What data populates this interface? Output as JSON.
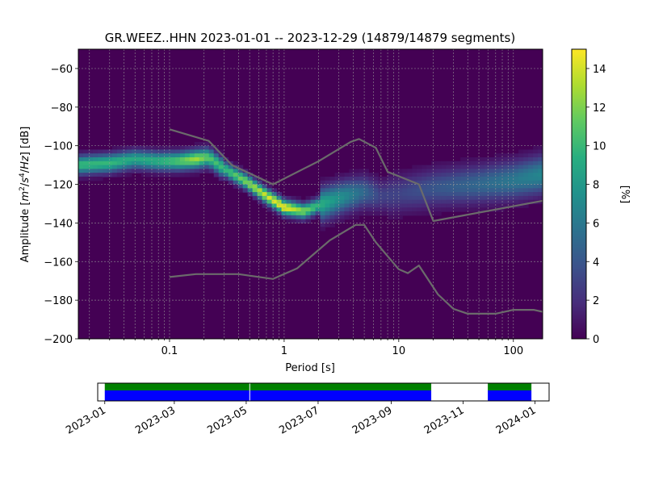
{
  "title": "GR.WEEZ..HHN   2023-01-01 -- 2023-12-29  (14879/14879 segments)",
  "chart_data": [
    {
      "type": "heatmap",
      "title": "GR.WEEZ..HHN   2023-01-01 -- 2023-12-29  (14879/14879 segments)",
      "xlabel": "Period [s]",
      "ylabel_parts": [
        "Amplitude [",
        "m",
        "2",
        "/",
        "s",
        "4",
        "/",
        "Hz",
        "] [dB]"
      ],
      "x_scale": "log",
      "xlim": [
        0.016,
        180
      ],
      "ylim": [
        -200,
        -50
      ],
      "x_ticks": [
        {
          "v": 0.1,
          "label": "0.1"
        },
        {
          "v": 1,
          "label": "1"
        },
        {
          "v": 10,
          "label": "10"
        },
        {
          "v": 100,
          "label": "100"
        }
      ],
      "y_ticks": [
        {
          "v": -60,
          "label": "−60"
        },
        {
          "v": -80,
          "label": "−80"
        },
        {
          "v": -100,
          "label": "−100"
        },
        {
          "v": -120,
          "label": "−120"
        },
        {
          "v": -140,
          "label": "−140"
        },
        {
          "v": -160,
          "label": "−160"
        },
        {
          "v": -180,
          "label": "−180"
        },
        {
          "v": -200,
          "label": "−200"
        }
      ],
      "grid": true,
      "colormap": "viridis",
      "colorbar": {
        "label": "[%]",
        "range": [
          0,
          15
        ],
        "ticks": [
          {
            "v": 0,
            "label": "0"
          },
          {
            "v": 2,
            "label": "2"
          },
          {
            "v": 4,
            "label": "4"
          },
          {
            "v": 6,
            "label": "6"
          },
          {
            "v": 8,
            "label": "8"
          },
          {
            "v": 10,
            "label": "10"
          },
          {
            "v": 12,
            "label": "12"
          },
          {
            "v": 14,
            "label": "14"
          }
        ]
      },
      "mode_curve": [
        {
          "x": 0.016,
          "y": -110,
          "peak": 10
        },
        {
          "x": 0.03,
          "y": -109,
          "peak": 10
        },
        {
          "x": 0.05,
          "y": -107,
          "peak": 9
        },
        {
          "x": 0.08,
          "y": -108,
          "peak": 9.5
        },
        {
          "x": 0.12,
          "y": -108,
          "peak": 11
        },
        {
          "x": 0.17,
          "y": -107,
          "peak": 13
        },
        {
          "x": 0.22,
          "y": -106,
          "peak": 11
        },
        {
          "x": 0.3,
          "y": -112,
          "peak": 10
        },
        {
          "x": 0.45,
          "y": -118,
          "peak": 12
        },
        {
          "x": 0.7,
          "y": -126,
          "peak": 14
        },
        {
          "x": 1.0,
          "y": -132,
          "peak": 15
        },
        {
          "x": 1.5,
          "y": -134,
          "peak": 12
        },
        {
          "x": 2.2,
          "y": -130,
          "peak": 9
        },
        {
          "x": 3.5,
          "y": -126,
          "peak": 7
        },
        {
          "x": 5,
          "y": -124,
          "peak": 5
        },
        {
          "x": 7,
          "y": -126,
          "peak": 3
        },
        {
          "x": 10,
          "y": -125,
          "peak": 3
        },
        {
          "x": 20,
          "y": -122,
          "peak": 4
        },
        {
          "x": 50,
          "y": -120,
          "peak": 5
        },
        {
          "x": 100,
          "y": -118,
          "peak": 6
        },
        {
          "x": 180,
          "y": -115,
          "peak": 7
        }
      ],
      "series": [
        {
          "points": [
            [
              0.1,
              -91.5
            ],
            [
              0.22,
              -97.5
            ],
            [
              0.35,
              -110
            ],
            [
              0.8,
              -120
            ],
            [
              2.0,
              -108
            ],
            [
              3.8,
              -98
            ],
            [
              4.5,
              -96.5
            ],
            [
              6.3,
              -101
            ],
            [
              8,
              -113.5
            ],
            [
              15,
              -120
            ],
            [
              20,
              -139
            ],
            [
              180,
              -128.5
            ]
          ]
        },
        {
          "points": [
            [
              0.1,
              -168
            ],
            [
              0.17,
              -166.5
            ],
            [
              0.4,
              -166.5
            ],
            [
              0.8,
              -169
            ],
            [
              1.3,
              -163.5
            ],
            [
              2.5,
              -149
            ],
            [
              4.2,
              -141
            ],
            [
              5,
              -141
            ],
            [
              6.3,
              -150
            ],
            [
              10,
              -164
            ],
            [
              12,
              -166
            ],
            [
              15,
              -162
            ],
            [
              22,
              -177
            ],
            [
              30,
              -184.5
            ],
            [
              40,
              -187
            ],
            [
              70,
              -187
            ],
            [
              100,
              -185
            ],
            [
              150,
              -185
            ],
            [
              180,
              -186
            ]
          ]
        }
      ]
    },
    {
      "type": "timeline",
      "x_ticks": [
        {
          "v": "2023-01",
          "label": "2023-01"
        },
        {
          "v": "2023-03",
          "label": "2023-03"
        },
        {
          "v": "2023-05",
          "label": "2023-05"
        },
        {
          "v": "2023-07",
          "label": "2023-07"
        },
        {
          "v": "2023-09",
          "label": "2023-09"
        },
        {
          "v": "2023-11",
          "label": "2023-11"
        },
        {
          "v": "2024-01",
          "label": "2024-01"
        }
      ],
      "xlim": [
        "2022-12-26",
        "2024-01-13"
      ],
      "data_segments": [
        [
          "2023-01-01",
          "2023-10-05"
        ],
        [
          "2023-11-22",
          "2023-12-29"
        ]
      ],
      "gaps": [
        "2023-05-04"
      ],
      "colors": {
        "available": "#0000ff",
        "used": "#008000"
      }
    }
  ]
}
